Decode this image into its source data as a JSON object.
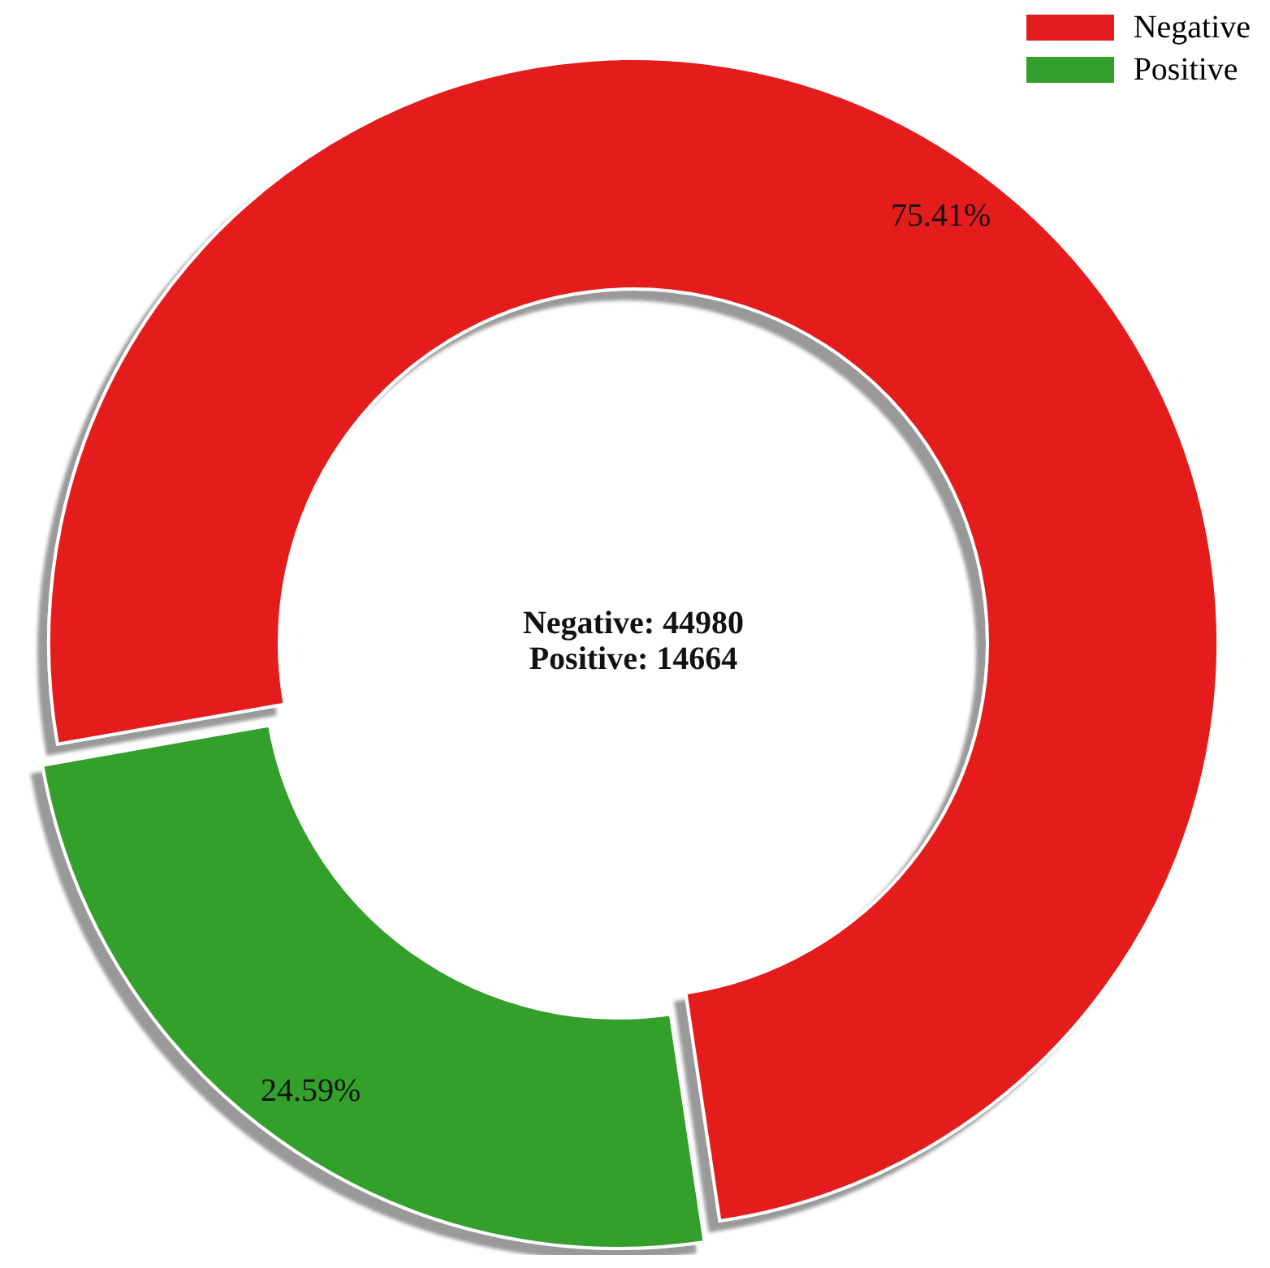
{
  "chart_data": {
    "type": "donut",
    "categories": [
      "Negative",
      "Positive"
    ],
    "values": [
      75.41,
      24.59
    ],
    "colors": [
      "#e41a1c",
      "#33a02c"
    ],
    "value_labels": [
      "75.41%",
      "24.59%"
    ],
    "annotations": [
      "Negative: 44980",
      "Positive: 14664"
    ],
    "legend": "top right"
  }
}
